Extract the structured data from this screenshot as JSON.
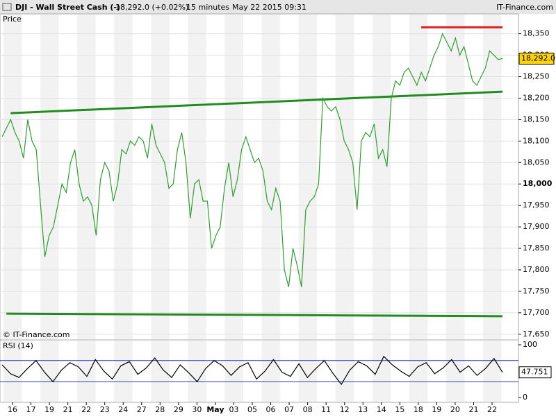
{
  "header": {
    "symbol": "DJI - Wall Street Cash (-)",
    "quote": "18,292.0 (+0.02%)",
    "interval": "15 minutes",
    "datetime": "May 22 2015 09:31",
    "source": "IT-Finance.com"
  },
  "chart_data": [
    {
      "type": "line",
      "panel_label": "Price",
      "watermark": "© IT-Finance.com",
      "color": "#2e9e2e",
      "values": [
        18110,
        18130,
        18150,
        18120,
        18100,
        18060,
        18150,
        18100,
        18080,
        17950,
        17830,
        17880,
        17900,
        17950,
        18000,
        17980,
        18050,
        18080,
        18000,
        17960,
        17970,
        17950,
        17880,
        18010,
        18050,
        18030,
        17960,
        18000,
        18080,
        18070,
        18100,
        18090,
        18110,
        18100,
        18060,
        18140,
        18090,
        18070,
        18050,
        17990,
        18000,
        18080,
        18120,
        18050,
        17920,
        18000,
        18010,
        17960,
        17960,
        17850,
        17880,
        17900,
        17990,
        18050,
        17970,
        18010,
        18080,
        18110,
        18080,
        18050,
        18060,
        18030,
        17960,
        17940,
        17990,
        17960,
        17800,
        17760,
        17850,
        17810,
        17760,
        17940,
        17960,
        17970,
        18000,
        18200,
        18180,
        18170,
        18180,
        18150,
        18100,
        18080,
        18050,
        17940,
        18100,
        18120,
        18110,
        18140,
        18060,
        18080,
        18040,
        18200,
        18240,
        18230,
        18260,
        18270,
        18250,
        18230,
        18260,
        18240,
        18270,
        18300,
        18320,
        18350,
        18330,
        18310,
        18340,
        18300,
        18320,
        18280,
        18240,
        18230,
        18250,
        18270,
        18310,
        18300,
        18290,
        18292
      ],
      "ylim": [
        17640,
        18372
      ],
      "yticks": [
        {
          "value": 17650,
          "label": "17,650"
        },
        {
          "value": 17700,
          "label": "17,700"
        },
        {
          "value": 17750,
          "label": "17,750"
        },
        {
          "value": 17800,
          "label": "17,800"
        },
        {
          "value": 17850,
          "label": "17,850"
        },
        {
          "value": 17900,
          "label": "17,900"
        },
        {
          "value": 17950,
          "label": "17,950"
        },
        {
          "value": 18000,
          "label": "18,000"
        },
        {
          "value": 18050,
          "label": "18,050"
        },
        {
          "value": 18100,
          "label": "18,100"
        },
        {
          "value": 18150,
          "label": "18,150"
        },
        {
          "value": 18200,
          "label": "18,200"
        },
        {
          "value": 18250,
          "label": "18,250"
        },
        {
          "value": 18300,
          "label": "18,300"
        },
        {
          "value": 18350,
          "label": "18,350"
        }
      ],
      "last": {
        "value": 18292.0,
        "label": "18,292.0"
      },
      "trendlines": [
        {
          "color": "#1e8c1e",
          "x": [
            2,
            117
          ],
          "y": [
            18165,
            18215
          ]
        },
        {
          "color": "#1e8c1e",
          "x": [
            1,
            117
          ],
          "y": [
            17698,
            17692
          ]
        },
        {
          "color": "#e02020",
          "x": [
            98,
            117
          ],
          "y": [
            18365,
            18365
          ]
        }
      ],
      "x_labels": [
        "16",
        "17",
        "19",
        "21",
        "22",
        "23",
        "24",
        "27",
        "28",
        "29",
        "30",
        "May",
        "03",
        "05",
        "06",
        "07",
        "08",
        "11",
        "12",
        "13",
        "14",
        "15",
        "18",
        "19",
        "20",
        "21",
        "22"
      ]
    },
    {
      "type": "line",
      "panel_label": "RSI (14)",
      "color": "#000000",
      "values": [
        62,
        45,
        38,
        55,
        70,
        48,
        30,
        52,
        66,
        58,
        40,
        72,
        50,
        35,
        60,
        68,
        44,
        56,
        75,
        52,
        38,
        62,
        47,
        30,
        55,
        70,
        60,
        42,
        58,
        66,
        35,
        50,
        72,
        48,
        40,
        64,
        38,
        55,
        70,
        46,
        25,
        52,
        68,
        60,
        44,
        78,
        62,
        50,
        40,
        58,
        66,
        45,
        56,
        72,
        48,
        60,
        42,
        55,
        74,
        47.751
      ],
      "ylim": [
        0,
        100
      ],
      "yticks": [
        0,
        100
      ],
      "levels": [
        30,
        70
      ],
      "level_color": "#3030c0",
      "last": {
        "value": 47.751,
        "label": "47.751"
      }
    }
  ]
}
